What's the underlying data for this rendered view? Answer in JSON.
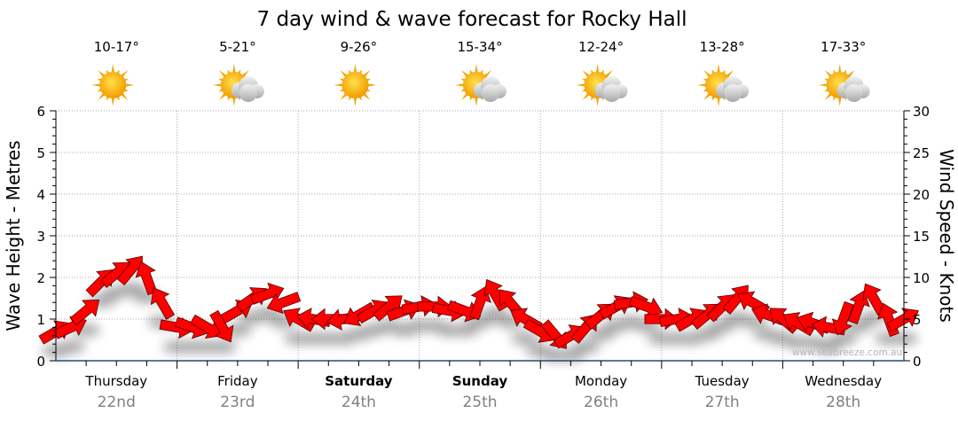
{
  "chart_data": {
    "type": "scatter",
    "title": "7 day wind & wave forecast for Rocky Hall",
    "ylabel_left": "Wave Height - Metres",
    "ylabel_right": "Wind Speed - Knots",
    "ylim_left": [
      0,
      6
    ],
    "ylim_right": [
      0,
      30
    ],
    "yticks_left": [
      "0",
      "1",
      "2",
      "3",
      "4",
      "5",
      "6"
    ],
    "yticks_right": [
      "0",
      "5",
      "10",
      "15",
      "20",
      "25",
      "30"
    ],
    "grid": true,
    "watermark": "www.seabreeze.com.au",
    "days": [
      {
        "name": "Thursday",
        "date": "22nd",
        "temp": "10-17°",
        "icon": "sun",
        "bold": false
      },
      {
        "name": "Friday",
        "date": "23rd",
        "temp": "5-21°",
        "icon": "sun-cloud",
        "bold": false
      },
      {
        "name": "Saturday",
        "date": "24th",
        "temp": "9-26°",
        "icon": "sun",
        "bold": true
      },
      {
        "name": "Sunday",
        "date": "25th",
        "temp": "15-34°",
        "icon": "sun-cloud",
        "bold": true
      },
      {
        "name": "Monday",
        "date": "26th",
        "temp": "12-24°",
        "icon": "sun-cloud",
        "bold": false
      },
      {
        "name": "Tuesday",
        "date": "27th",
        "temp": "13-28°",
        "icon": "sun-cloud",
        "bold": false
      },
      {
        "name": "Wednesday",
        "date": "28th",
        "temp": "17-33°",
        "icon": "sun-cloud",
        "bold": false
      }
    ],
    "wind_series": {
      "name": "Wind",
      "interval_hours": 3,
      "speed_knots": [
        3.5,
        4,
        6,
        9.5,
        10.5,
        11,
        10,
        7,
        4,
        4,
        4,
        4,
        6,
        7.5,
        8,
        7,
        5,
        5,
        5,
        5,
        5.5,
        6,
        6.5,
        6,
        6.5,
        6.5,
        6,
        6,
        7,
        8,
        7,
        5,
        3.5,
        3,
        3,
        4,
        5.5,
        6.5,
        7,
        6.5,
        5,
        5,
        5,
        5.5,
        6.5,
        7.5,
        7,
        5.5,
        5,
        4.5,
        4.5,
        4,
        5,
        6.5,
        7.5,
        5,
        5
      ],
      "direction_deg": [
        60,
        65,
        50,
        45,
        50,
        40,
        340,
        330,
        100,
        110,
        120,
        150,
        60,
        55,
        70,
        250,
        300,
        280,
        270,
        260,
        240,
        60,
        50,
        70,
        80,
        90,
        100,
        110,
        20,
        330,
        320,
        300,
        120,
        140,
        60,
        40,
        50,
        60,
        80,
        110,
        90,
        80,
        60,
        50,
        45,
        40,
        300,
        290,
        310,
        300,
        290,
        280,
        200,
        20,
        330,
        340,
        60
      ]
    }
  }
}
